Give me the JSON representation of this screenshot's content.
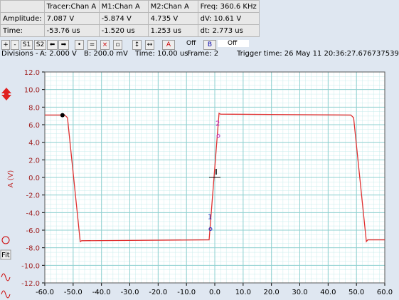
{
  "table": {
    "header": [
      "Tracer:Chan A",
      "M1:Chan A",
      "M2:Chan A",
      "Freq: 360.6 KHz"
    ],
    "rows": [
      {
        "label": "Amplitude:",
        "cells": [
          "7.087 V",
          "-5.874 V",
          "4.735 V",
          "dV: 10.61 V"
        ]
      },
      {
        "label": "Time:",
        "cells": [
          "-53.76 us",
          "-1.520 us",
          "1.253 us",
          "dt:  2.773 us"
        ]
      }
    ]
  },
  "toolbar": {
    "buttons": [
      "S1",
      "S2"
    ],
    "a_state": "Off",
    "b_state": "Off"
  },
  "status": {
    "divisions": "Divisions -",
    "a_div": "A: 2.000 V",
    "b_div": "B: 200.0 mV",
    "time_div": "Time: 10.00 us",
    "frame": "Frame: 2",
    "trigger": "Trigger time: 26 May 11 20:36:27.676737539"
  },
  "side_buttons": {
    "fit": "Fit"
  },
  "chart_data": {
    "type": "line",
    "y_label": "A (V)",
    "x": [
      -60,
      -53,
      -52,
      -47.5,
      -47,
      -2,
      1.5,
      2,
      48,
      49,
      53.5,
      54,
      60
    ],
    "series": [
      {
        "name": "Chan A",
        "color": "#e03030",
        "values": [
          7.1,
          7.1,
          6.8,
          -7.3,
          -7.2,
          -7.1,
          7.3,
          7.2,
          7.1,
          6.8,
          -7.3,
          -7.1,
          -7.1
        ]
      }
    ],
    "xlim": [
      -60,
      60
    ],
    "ylim": [
      -12,
      12
    ],
    "xticks": [
      {
        "value": -60,
        "label": "-60.0"
      },
      {
        "value": -50,
        "label": "-50.0"
      },
      {
        "value": -40,
        "label": "-40.0"
      },
      {
        "value": -30,
        "label": "-30.0"
      },
      {
        "value": -20,
        "label": "-20.0"
      },
      {
        "value": -10,
        "label": "-10.0"
      },
      {
        "value": 0,
        "label": "0.0"
      },
      {
        "value": 10,
        "label": "10.0"
      },
      {
        "value": 20,
        "label": "20.0"
      },
      {
        "value": 30,
        "label": "30.0"
      },
      {
        "value": 40,
        "label": "40.0"
      },
      {
        "value": 50,
        "label": "50.0"
      },
      {
        "value": 60,
        "label": "60.0"
      }
    ],
    "yticks": [
      {
        "value": -12,
        "label": "-12.0"
      },
      {
        "value": -10,
        "label": "-10.0"
      },
      {
        "value": -8,
        "label": "-8.0"
      },
      {
        "value": -6,
        "label": "-6.0"
      },
      {
        "value": -4,
        "label": "-4.0"
      },
      {
        "value": -2,
        "label": "-2.0"
      },
      {
        "value": 0,
        "label": "0.0"
      },
      {
        "value": 2,
        "label": "2.0"
      },
      {
        "value": 4,
        "label": "4.0"
      },
      {
        "value": 6,
        "label": "6.0"
      },
      {
        "value": 8,
        "label": "8.0"
      },
      {
        "value": 10,
        "label": "10.0"
      },
      {
        "value": 12,
        "label": "12.0"
      }
    ],
    "grid": true,
    "tracer": {
      "x": -53.76,
      "y": 7.087,
      "color": "#000000"
    },
    "markers": [
      {
        "label": "1",
        "x": -1.52,
        "y": -5.874,
        "color": "#2030c0"
      },
      {
        "label": "2",
        "x": 1.253,
        "y": 4.735,
        "color": "#c030c0"
      }
    ]
  }
}
